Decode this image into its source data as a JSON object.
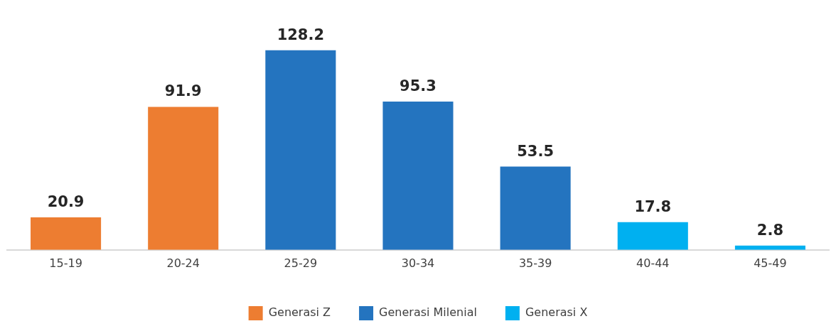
{
  "chart_data": {
    "type": "bar",
    "categories": [
      "15-19",
      "20-24",
      "25-29",
      "30-34",
      "35-39",
      "40-44",
      "45-49"
    ],
    "series": [
      {
        "name": "Generasi Z",
        "color": "#ed7d31",
        "values": [
          20.9,
          91.9,
          null,
          null,
          null,
          null,
          null
        ]
      },
      {
        "name": "Generasi Milenial",
        "color": "#2474bf",
        "values": [
          null,
          null,
          128.2,
          95.3,
          53.5,
          null,
          null
        ]
      },
      {
        "name": "Generasi X",
        "color": "#00b0f0",
        "values": [
          null,
          null,
          null,
          null,
          null,
          17.8,
          2.8
        ]
      }
    ],
    "data_labels": true,
    "legend": "bottom",
    "grid": false,
    "tick_labels": "x"
  }
}
